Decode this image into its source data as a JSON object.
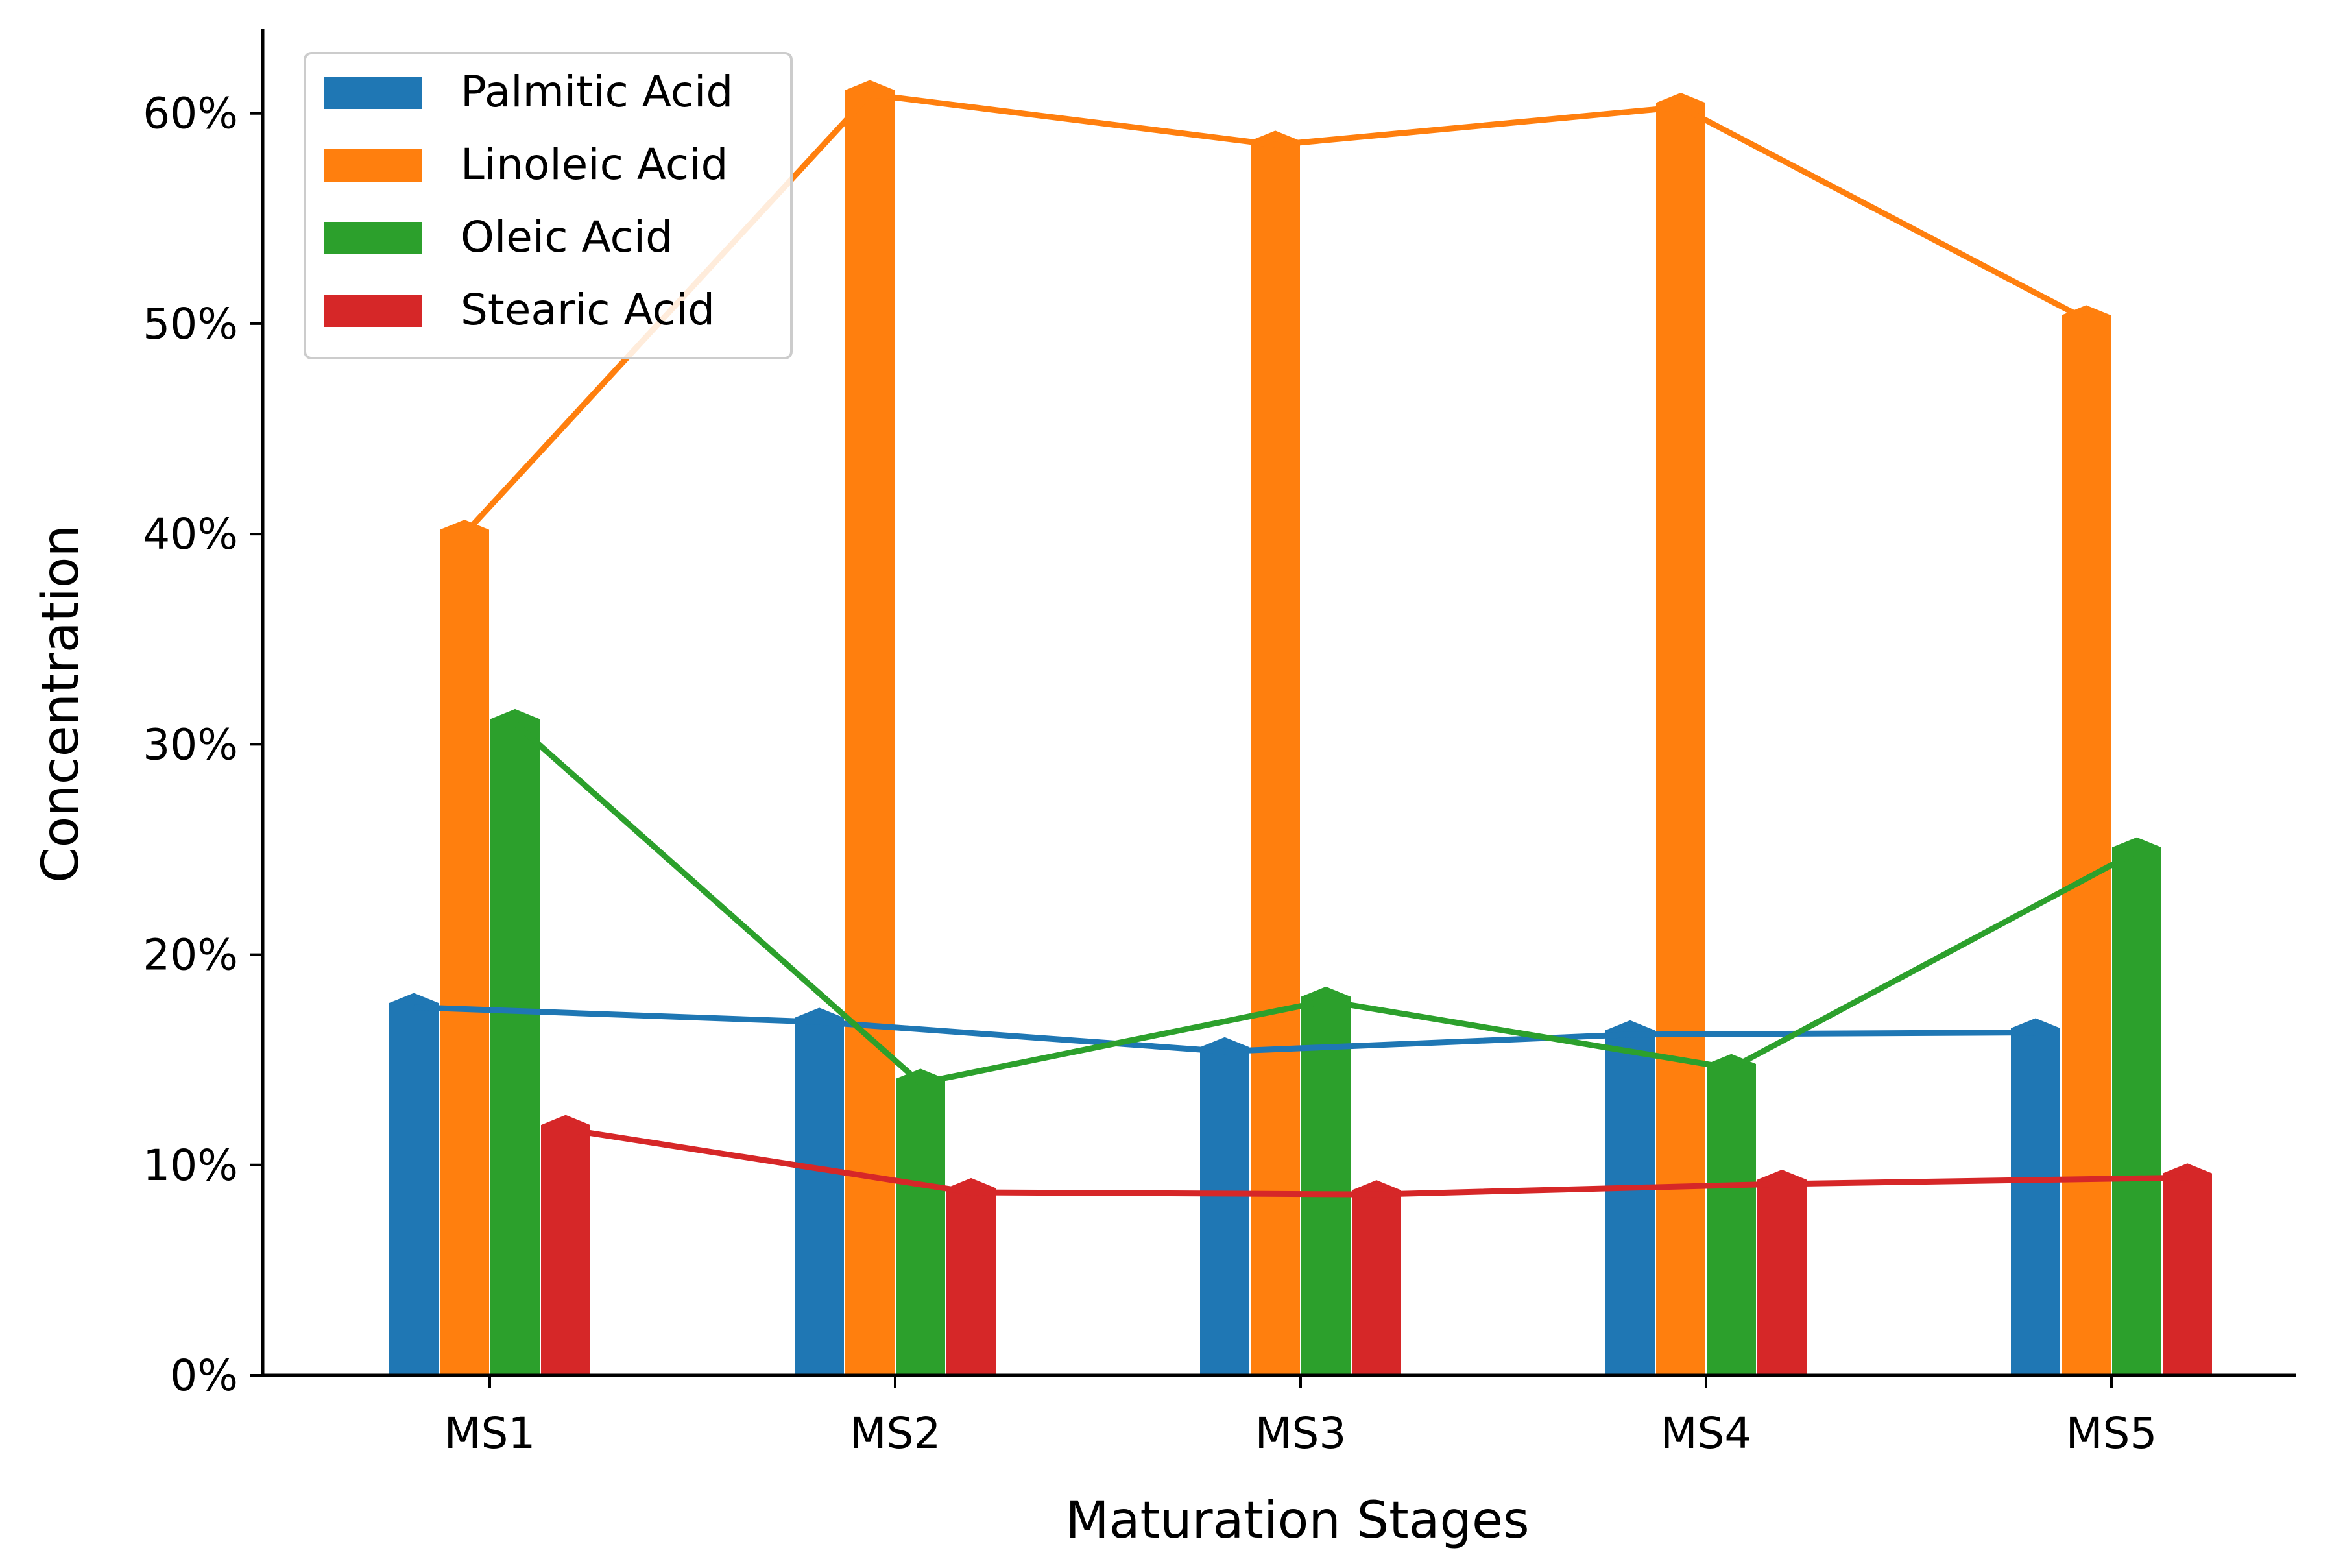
{
  "chart_data": {
    "type": "bar",
    "title": "",
    "xlabel": "Maturation Stages",
    "ylabel": "Concentration",
    "categories": [
      "MS1",
      "MS2",
      "MS3",
      "MS4",
      "MS5"
    ],
    "ylim": [
      0,
      0.64
    ],
    "y_ticks": [
      0,
      0.1,
      0.2,
      0.3,
      0.4,
      0.5,
      0.6
    ],
    "y_tick_labels": [
      "0%",
      "10%",
      "20%",
      "30%",
      "40%",
      "50%",
      "60%"
    ],
    "grid": false,
    "legend_position": "top-left",
    "overlay": "line",
    "series": [
      {
        "name": "Palmitic Acid",
        "color": "#1f77b4",
        "values": [
          0.175,
          0.168,
          0.154,
          0.162,
          0.163
        ]
      },
      {
        "name": "Linoleic Acid",
        "color": "#ff7f0e",
        "values": [
          0.4,
          0.609,
          0.585,
          0.603,
          0.502
        ]
      },
      {
        "name": "Oleic Acid",
        "color": "#2ca02c",
        "values": [
          0.31,
          0.139,
          0.178,
          0.146,
          0.249
        ]
      },
      {
        "name": "Stearic Acid",
        "color": "#d62728",
        "values": [
          0.117,
          0.087,
          0.086,
          0.091,
          0.094
        ]
      }
    ]
  }
}
